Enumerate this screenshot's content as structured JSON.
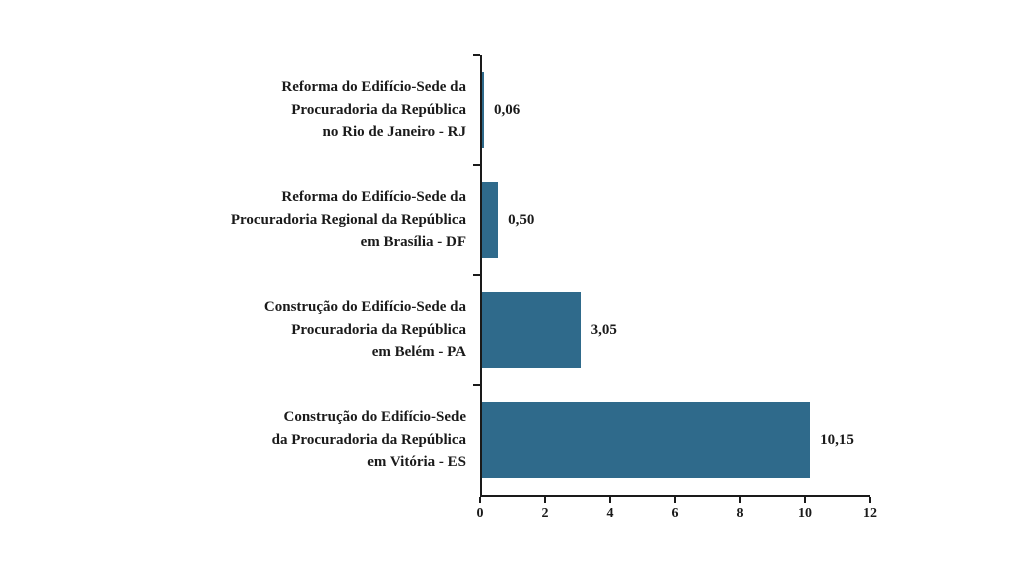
{
  "chart_data": {
    "type": "bar",
    "orientation": "horizontal",
    "title": "",
    "xlabel": "",
    "ylabel": "",
    "bar_color": "#2F6A8B",
    "axis_color": "#1a1a1a",
    "grid": false,
    "legend": false,
    "categories": [
      [
        "Reforma do Edifício-Sede da",
        "Procuradoria da República",
        "no Rio de Janeiro - RJ"
      ],
      [
        "Reforma do Edifício-Sede da",
        "Procuradoria Regional da República",
        "em Brasília - DF"
      ],
      [
        "Construção do Edifício-Sede da",
        "Procuradoria da República",
        "em Belém - PA"
      ],
      [
        "Construção do Edifício-Sede",
        "da Procuradoria da República",
        "em Vitória - ES"
      ]
    ],
    "values": [
      0.06,
      0.5,
      3.05,
      10.15
    ],
    "value_labels": [
      "0,06",
      "0,50",
      "3,05",
      "10,15"
    ],
    "axis": {
      "min": 0,
      "max": 12,
      "ticks": [
        0,
        2,
        4,
        6,
        8,
        10,
        12
      ],
      "tick_labels": [
        "0",
        "2",
        "4",
        "6",
        "8",
        "10",
        "12"
      ]
    }
  }
}
